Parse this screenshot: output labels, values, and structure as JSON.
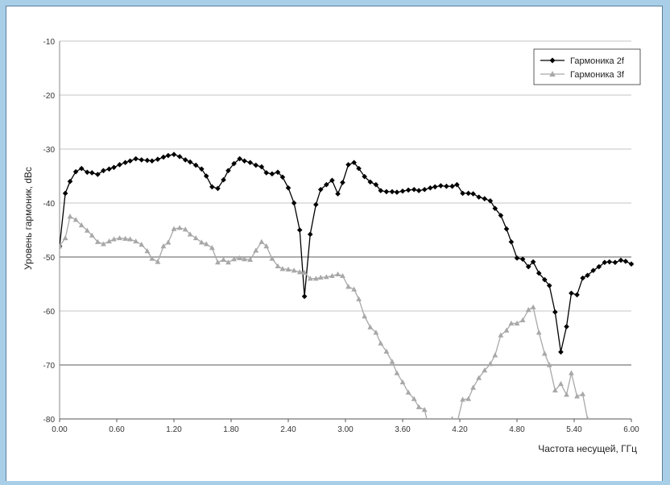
{
  "chart_data": {
    "type": "line",
    "title": "",
    "xlabel": "Частота несущей, ГГц",
    "ylabel": "Уровень гармоник, dBc",
    "xlim": [
      0,
      6
    ],
    "ylim": [
      -80,
      -10
    ],
    "x_ticks": [
      "0.00",
      "0.60",
      "1.20",
      "1.80",
      "2.40",
      "3.00",
      "3.60",
      "4.20",
      "4.80",
      "5.40",
      "6.00"
    ],
    "y_ticks": [
      "-10",
      "-20",
      "-30",
      "-40",
      "-50",
      "-60",
      "-70",
      "-80"
    ],
    "grid": "horizontal",
    "legend_position": "top-right",
    "series": [
      {
        "name": "Гармоника 2f",
        "color": "#000000",
        "marker": "diamond",
        "points": [
          [
            0.0,
            -48.0
          ],
          [
            0.06,
            -38.2
          ],
          [
            0.11,
            -36.0
          ],
          [
            0.17,
            -34.2
          ],
          [
            0.23,
            -33.6
          ],
          [
            0.29,
            -34.3
          ],
          [
            0.34,
            -34.4
          ],
          [
            0.4,
            -34.7
          ],
          [
            0.46,
            -34.0
          ],
          [
            0.52,
            -33.7
          ],
          [
            0.57,
            -33.4
          ],
          [
            0.63,
            -32.9
          ],
          [
            0.69,
            -32.5
          ],
          [
            0.74,
            -32.2
          ],
          [
            0.8,
            -31.8
          ],
          [
            0.86,
            -32.0
          ],
          [
            0.92,
            -32.1
          ],
          [
            0.97,
            -32.2
          ],
          [
            1.03,
            -31.9
          ],
          [
            1.09,
            -31.5
          ],
          [
            1.14,
            -31.2
          ],
          [
            1.2,
            -31.0
          ],
          [
            1.26,
            -31.4
          ],
          [
            1.32,
            -32.0
          ],
          [
            1.37,
            -32.4
          ],
          [
            1.43,
            -33.0
          ],
          [
            1.49,
            -33.7
          ],
          [
            1.54,
            -35.0
          ],
          [
            1.6,
            -37.0
          ],
          [
            1.66,
            -37.3
          ],
          [
            1.72,
            -35.7
          ],
          [
            1.77,
            -34.0
          ],
          [
            1.83,
            -32.7
          ],
          [
            1.89,
            -31.8
          ],
          [
            1.94,
            -32.2
          ],
          [
            2.0,
            -32.5
          ],
          [
            2.06,
            -33.0
          ],
          [
            2.12,
            -33.3
          ],
          [
            2.17,
            -34.4
          ],
          [
            2.23,
            -34.6
          ],
          [
            2.29,
            -34.3
          ],
          [
            2.34,
            -35.2
          ],
          [
            2.4,
            -37.2
          ],
          [
            2.46,
            -40.0
          ],
          [
            2.52,
            -45.0
          ],
          [
            2.57,
            -57.3
          ],
          [
            2.63,
            -45.8
          ],
          [
            2.69,
            -40.3
          ],
          [
            2.74,
            -37.5
          ],
          [
            2.8,
            -36.6
          ],
          [
            2.86,
            -35.8
          ],
          [
            2.92,
            -38.3
          ],
          [
            2.97,
            -36.2
          ],
          [
            3.03,
            -32.9
          ],
          [
            3.09,
            -32.5
          ],
          [
            3.14,
            -33.6
          ],
          [
            3.2,
            -35.1
          ],
          [
            3.26,
            -36.1
          ],
          [
            3.32,
            -36.6
          ],
          [
            3.37,
            -37.7
          ],
          [
            3.43,
            -37.9
          ],
          [
            3.49,
            -37.9
          ],
          [
            3.54,
            -38.0
          ],
          [
            3.6,
            -37.8
          ],
          [
            3.66,
            -37.6
          ],
          [
            3.72,
            -37.5
          ],
          [
            3.77,
            -37.7
          ],
          [
            3.83,
            -37.5
          ],
          [
            3.89,
            -37.2
          ],
          [
            3.94,
            -37.0
          ],
          [
            4.0,
            -36.8
          ],
          [
            4.06,
            -36.9
          ],
          [
            4.12,
            -36.9
          ],
          [
            4.17,
            -36.6
          ],
          [
            4.23,
            -38.2
          ],
          [
            4.29,
            -38.2
          ],
          [
            4.34,
            -38.3
          ],
          [
            4.4,
            -38.9
          ],
          [
            4.46,
            -39.2
          ],
          [
            4.52,
            -39.6
          ],
          [
            4.57,
            -41.0
          ],
          [
            4.63,
            -42.3
          ],
          [
            4.69,
            -44.8
          ],
          [
            4.74,
            -47.2
          ],
          [
            4.8,
            -50.2
          ],
          [
            4.86,
            -50.4
          ],
          [
            4.92,
            -51.8
          ],
          [
            4.97,
            -50.9
          ],
          [
            5.03,
            -53.0
          ],
          [
            5.09,
            -54.2
          ],
          [
            5.14,
            -55.3
          ],
          [
            5.2,
            -60.2
          ],
          [
            5.26,
            -67.6
          ],
          [
            5.32,
            -62.9
          ],
          [
            5.37,
            -56.7
          ],
          [
            5.43,
            -57.0
          ],
          [
            5.49,
            -53.9
          ],
          [
            5.54,
            -53.4
          ],
          [
            5.6,
            -52.5
          ],
          [
            5.66,
            -51.8
          ],
          [
            5.72,
            -51.0
          ],
          [
            5.77,
            -50.9
          ],
          [
            5.83,
            -51.0
          ],
          [
            5.89,
            -50.6
          ],
          [
            5.94,
            -50.8
          ],
          [
            6.0,
            -51.3
          ]
        ]
      },
      {
        "name": "Гармоника 3f",
        "color": "#a8a8a8",
        "marker": "triangle",
        "points": [
          [
            0.0,
            -48.0
          ],
          [
            0.06,
            -46.5
          ],
          [
            0.11,
            -42.5
          ],
          [
            0.17,
            -43.1
          ],
          [
            0.23,
            -44.1
          ],
          [
            0.29,
            -45.1
          ],
          [
            0.34,
            -46.0
          ],
          [
            0.4,
            -47.2
          ],
          [
            0.46,
            -47.6
          ],
          [
            0.52,
            -47.1
          ],
          [
            0.57,
            -46.7
          ],
          [
            0.63,
            -46.5
          ],
          [
            0.69,
            -46.6
          ],
          [
            0.74,
            -46.7
          ],
          [
            0.8,
            -47.1
          ],
          [
            0.86,
            -47.7
          ],
          [
            0.92,
            -48.9
          ],
          [
            0.97,
            -50.3
          ],
          [
            1.03,
            -50.9
          ],
          [
            1.09,
            -48.0
          ],
          [
            1.14,
            -47.3
          ],
          [
            1.2,
            -44.8
          ],
          [
            1.26,
            -44.6
          ],
          [
            1.32,
            -44.9
          ],
          [
            1.37,
            -45.8
          ],
          [
            1.43,
            -46.5
          ],
          [
            1.49,
            -47.3
          ],
          [
            1.54,
            -47.6
          ],
          [
            1.6,
            -48.3
          ],
          [
            1.66,
            -51.0
          ],
          [
            1.72,
            -50.5
          ],
          [
            1.77,
            -51.0
          ],
          [
            1.83,
            -50.4
          ],
          [
            1.89,
            -50.2
          ],
          [
            1.94,
            -50.4
          ],
          [
            2.0,
            -50.5
          ],
          [
            2.06,
            -48.8
          ],
          [
            2.12,
            -47.2
          ],
          [
            2.17,
            -48.0
          ],
          [
            2.23,
            -50.3
          ],
          [
            2.29,
            -51.7
          ],
          [
            2.34,
            -52.2
          ],
          [
            2.4,
            -52.3
          ],
          [
            2.46,
            -52.5
          ],
          [
            2.52,
            -52.8
          ],
          [
            2.57,
            -52.9
          ],
          [
            2.63,
            -54.0
          ],
          [
            2.69,
            -54.0
          ],
          [
            2.74,
            -53.8
          ],
          [
            2.8,
            -53.7
          ],
          [
            2.86,
            -53.5
          ],
          [
            2.92,
            -53.2
          ],
          [
            2.97,
            -53.5
          ],
          [
            3.03,
            -55.5
          ],
          [
            3.09,
            -56.0
          ],
          [
            3.14,
            -57.8
          ],
          [
            3.2,
            -61.0
          ],
          [
            3.26,
            -63.0
          ],
          [
            3.32,
            -64.0
          ],
          [
            3.37,
            -66.0
          ],
          [
            3.43,
            -67.5
          ],
          [
            3.49,
            -69.4
          ],
          [
            3.54,
            -71.5
          ],
          [
            3.6,
            -73.2
          ],
          [
            3.66,
            -75.1
          ],
          [
            3.72,
            -76.3
          ],
          [
            3.77,
            -77.8
          ],
          [
            3.83,
            -78.3
          ],
          [
            3.86,
            -80.5
          ],
          [
            4.09,
            -80.5
          ],
          [
            4.12,
            -80.0
          ],
          [
            4.17,
            -80.8
          ],
          [
            4.23,
            -76.4
          ],
          [
            4.29,
            -76.3
          ],
          [
            4.34,
            -74.2
          ],
          [
            4.4,
            -72.4
          ],
          [
            4.46,
            -71.0
          ],
          [
            4.52,
            -69.8
          ],
          [
            4.57,
            -68.2
          ],
          [
            4.63,
            -64.5
          ],
          [
            4.69,
            -63.6
          ],
          [
            4.74,
            -62.3
          ],
          [
            4.8,
            -62.3
          ],
          [
            4.86,
            -61.7
          ],
          [
            4.92,
            -59.8
          ],
          [
            4.97,
            -59.3
          ],
          [
            5.03,
            -64.0
          ],
          [
            5.09,
            -67.9
          ],
          [
            5.14,
            -70.0
          ],
          [
            5.2,
            -74.7
          ],
          [
            5.26,
            -73.5
          ],
          [
            5.32,
            -75.5
          ],
          [
            5.37,
            -71.5
          ],
          [
            5.43,
            -75.8
          ],
          [
            5.49,
            -75.4
          ],
          [
            5.54,
            -80.0
          ],
          [
            5.56,
            -80.5
          ]
        ]
      }
    ]
  }
}
